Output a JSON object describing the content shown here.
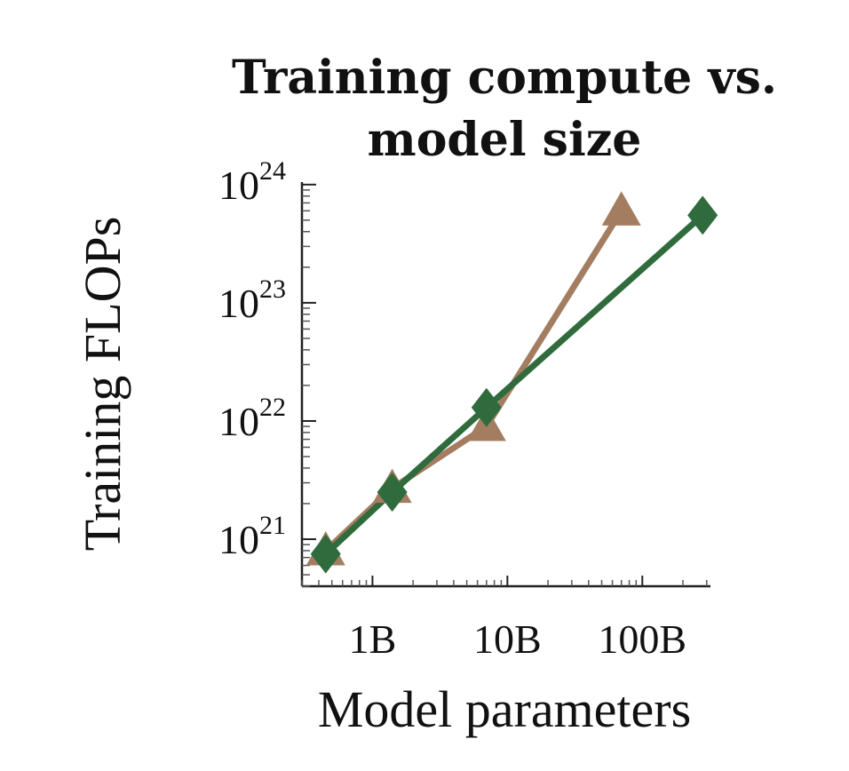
{
  "chart_data": {
    "type": "line",
    "title": [
      "Training compute vs.",
      "model size"
    ],
    "xlabel": "Model parameters",
    "ylabel": "Training FLOPs",
    "xscale": "log",
    "yscale": "log",
    "xlim": [
      300000000.0,
      320000000000.0
    ],
    "ylim": [
      4e+20,
      1.05e+24
    ],
    "xticks": [
      {
        "value": 1000000000.0,
        "label": "1B"
      },
      {
        "value": 10000000000.0,
        "label": "10B"
      },
      {
        "value": 100000000000.0,
        "label": "100B"
      }
    ],
    "yticks": [
      {
        "value": 1e+21,
        "base": "10",
        "exp": "21"
      },
      {
        "value": 1e+22,
        "base": "10",
        "exp": "22"
      },
      {
        "value": 1e+23,
        "base": "10",
        "exp": "23"
      },
      {
        "value": 1e+24,
        "base": "10",
        "exp": "24"
      }
    ],
    "grid": false,
    "legend": false,
    "series": [
      {
        "marker": "triangle",
        "color": "#a47d61",
        "x": [
          450000000.0,
          1400000000.0,
          7000000000.0,
          70000000000.0
        ],
        "y": [
          8e+20,
          2.7e+21,
          9e+21,
          6e+23
        ]
      },
      {
        "marker": "diamond",
        "color": "#2f6b3d",
        "x": [
          450000000.0,
          1400000000.0,
          7000000000.0,
          280000000000.0
        ],
        "y": [
          7.5e+20,
          2.5e+21,
          1.3e+22,
          5.5e+23
        ]
      }
    ]
  }
}
